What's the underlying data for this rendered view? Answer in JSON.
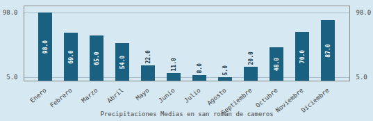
{
  "chart_data": {
    "type": "bar",
    "title": "Precipitaciones Medias en san roman de cameros",
    "categories": [
      "Enero",
      "Febrero",
      "Marzo",
      "Abril",
      "Mayo",
      "Junio",
      "Julio",
      "Agosto",
      "Septiembre",
      "Octubre",
      "Noviembre",
      "Diciembre"
    ],
    "values": [
      98,
      69,
      65,
      54,
      22,
      11,
      8,
      5,
      20,
      48,
      70,
      87
    ],
    "value_labels": [
      "98.0",
      "69.0",
      "65.0",
      "54.0",
      "22.0",
      "11.0",
      "8.0",
      "5.0",
      "20.0",
      "48.0",
      "70.0",
      "87.0"
    ],
    "color": "#1a6080",
    "ylim": [
      0,
      108
    ],
    "yticks": [
      {
        "value": 5,
        "label": "5.0"
      },
      {
        "value": 98,
        "label": "98.0"
      }
    ],
    "grid": true,
    "data_labels": true
  }
}
